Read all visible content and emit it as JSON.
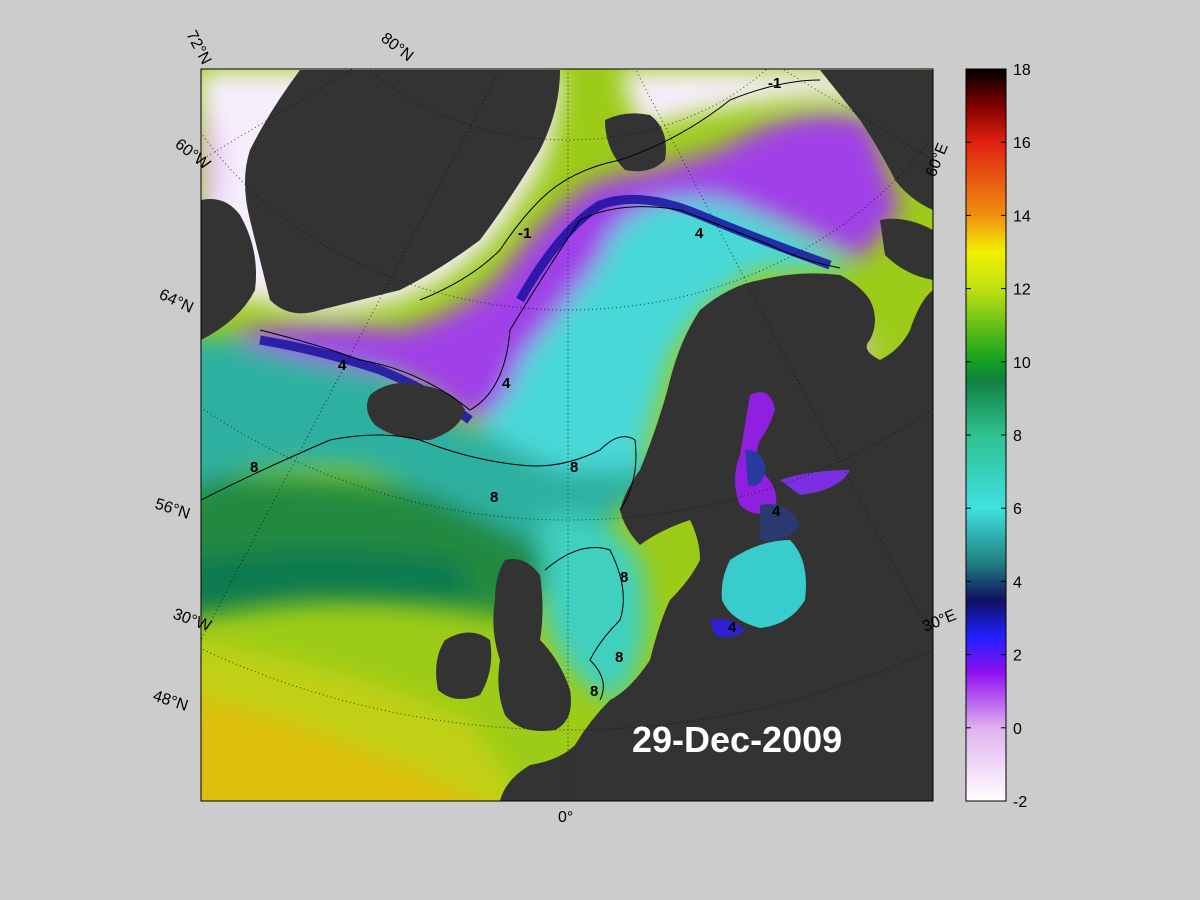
{
  "map": {
    "date": "29-Dec-2009",
    "graticule_labels": {
      "lat_72": "72°N",
      "lat_80": "80°N",
      "lat_60w": "60°W",
      "lat_64": "64°N",
      "lat_56": "56°N",
      "lon_30w": "30°W",
      "lat_48": "48°N",
      "lon_0": "0°",
      "lon_30e": "30°E",
      "lon_60e": "60°E"
    },
    "contour_labels": {
      "c1a": "-1",
      "c1b": "-1",
      "c4a": "4",
      "c4b": "4",
      "c4c": "4",
      "c8a": "8",
      "c8b": "8",
      "c8c": "8",
      "c8d": "8",
      "c8e": "8",
      "c4d": "4",
      "c4e": "4"
    },
    "colors": {
      "land": "#333333",
      "background": "#cccccc",
      "frame": "#000000"
    }
  },
  "colorbar": {
    "min": -2,
    "max": 18,
    "ticks": [
      "18",
      "16",
      "14",
      "12",
      "10",
      "8",
      "6",
      "4",
      "2",
      "0",
      "-2"
    ],
    "tick_values": [
      18,
      16,
      14,
      12,
      10,
      8,
      6,
      4,
      2,
      0,
      -2
    ],
    "stops": [
      {
        "value": -2,
        "color": "#ffffff"
      },
      {
        "value": 0,
        "color": "#e0b0f0"
      },
      {
        "value": 1.5,
        "color": "#9010f0"
      },
      {
        "value": 2.5,
        "color": "#2020ff"
      },
      {
        "value": 3.5,
        "color": "#101060"
      },
      {
        "value": 4.5,
        "color": "#208080"
      },
      {
        "value": 6,
        "color": "#40e0e0"
      },
      {
        "value": 8,
        "color": "#30c090"
      },
      {
        "value": 9.5,
        "color": "#108040"
      },
      {
        "value": 10,
        "color": "#10a020"
      },
      {
        "value": 12,
        "color": "#c0e010"
      },
      {
        "value": 13,
        "color": "#f0f000"
      },
      {
        "value": 14,
        "color": "#f09010"
      },
      {
        "value": 16,
        "color": "#e02010"
      },
      {
        "value": 17,
        "color": "#800000"
      },
      {
        "value": 18,
        "color": "#000000"
      }
    ]
  }
}
